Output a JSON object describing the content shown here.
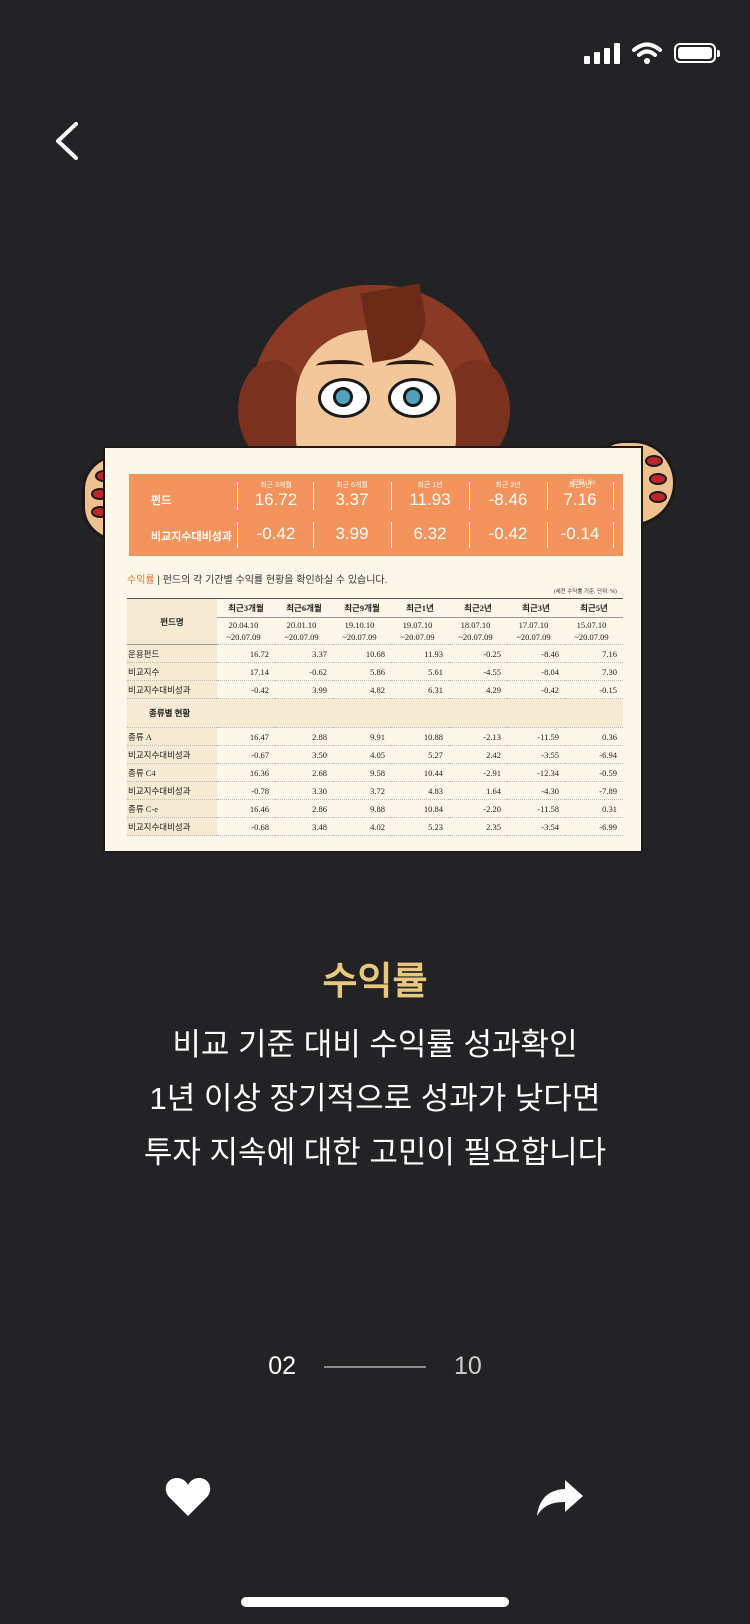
{
  "status_bar": {
    "signal": "signal-icon",
    "wifi": "wifi-icon",
    "battery": "battery-icon"
  },
  "nav": {
    "back_icon": "chevron-left-icon"
  },
  "illustration": {
    "summary": {
      "fund_label": "펀드",
      "benchmark_label": "비교지수대비성과",
      "unit": "(단위: %)",
      "columns": [
        "최근 3개월",
        "최근 6개월",
        "최근 1년",
        "최근 3년",
        "최근5년"
      ],
      "fund_values": [
        "16.72",
        "3.37",
        "11.93",
        "-8.46",
        "7.16"
      ],
      "benchmark_values": [
        "-0.42",
        "3.99",
        "6.32",
        "-0.42",
        "-0.14"
      ]
    },
    "caption_key": "수익률",
    "caption_text": "펀드의 각 기간별 수익률 현황을 확인하실 수 있습니다.",
    "basis": "(세전 수익률 기준, 단위: %)",
    "table": {
      "name_header": "펀드명",
      "headers": [
        "최근3개월",
        "최근6개월",
        "최근9개월",
        "최근1년",
        "최근2년",
        "최근3년",
        "최근5년"
      ],
      "dates_top": [
        "20.04.10",
        "20.01.10",
        "19.10.10",
        "19.07.10",
        "18.07.10",
        "17.07.10",
        "15.07.10"
      ],
      "dates_bottom": [
        "~20.07.09",
        "~20.07.09",
        "~20.07.09",
        "~20.07.09",
        "~20.07.09",
        "~20.07.09",
        "~20.07.09"
      ],
      "rows": [
        {
          "name": "운용펀드",
          "values": [
            "16.72",
            "3.37",
            "10.68",
            "11.93",
            "-0.25",
            "-8.46",
            "7.16"
          ]
        },
        {
          "name": "비교지수",
          "values": [
            "17.14",
            "-0.62",
            "5.86",
            "5.61",
            "-4.55",
            "-8.04",
            "7.30"
          ]
        },
        {
          "name": "비교지수대비성과",
          "values": [
            "-0.42",
            "3.99",
            "4.82",
            "6.31",
            "4.29",
            "-0.42",
            "-0.15"
          ]
        }
      ],
      "section_title": "종류별 현황",
      "class_rows": [
        {
          "name": "종류 A",
          "values": [
            "16.47",
            "2.88",
            "9.91",
            "10.88",
            "-2.13",
            "-11.59",
            "0.36"
          ]
        },
        {
          "name": "비교지수대비성과",
          "values": [
            "-0.67",
            "3.50",
            "4.05",
            "5.27",
            "2.42",
            "-3.55",
            "-6.94"
          ]
        },
        {
          "name": "종류 C4",
          "values": [
            "16.36",
            "2.68",
            "9.58",
            "10.44",
            "-2.91",
            "-12.34",
            "-0.59"
          ]
        },
        {
          "name": "비교지수대비성과",
          "values": [
            "-0.78",
            "3.30",
            "3.72",
            "4.83",
            "1.64",
            "-4.30",
            "-7.89"
          ]
        },
        {
          "name": "종류 C-e",
          "values": [
            "16.46",
            "2.86",
            "9.88",
            "10.84",
            "-2.20",
            "-11.58",
            "0.31"
          ]
        },
        {
          "name": "비교지수대비성과",
          "values": [
            "-0.68",
            "3.48",
            "4.02",
            "5.23",
            "2.35",
            "-3.54",
            "-6.99"
          ]
        }
      ]
    }
  },
  "content": {
    "title": "수익률",
    "lines": [
      "비교 기준 대비 수익률 성과확인",
      "1년 이상 장기적으로 성과가 낮다면",
      "투자 지속에 대한 고민이 필요합니다"
    ]
  },
  "pager": {
    "current": "02",
    "total": "10"
  },
  "actions": {
    "like_icon": "heart-icon",
    "share_icon": "share-icon"
  },
  "colors": {
    "background": "#232326",
    "accent": "#e8c77e",
    "table_header": "#f2945c"
  }
}
